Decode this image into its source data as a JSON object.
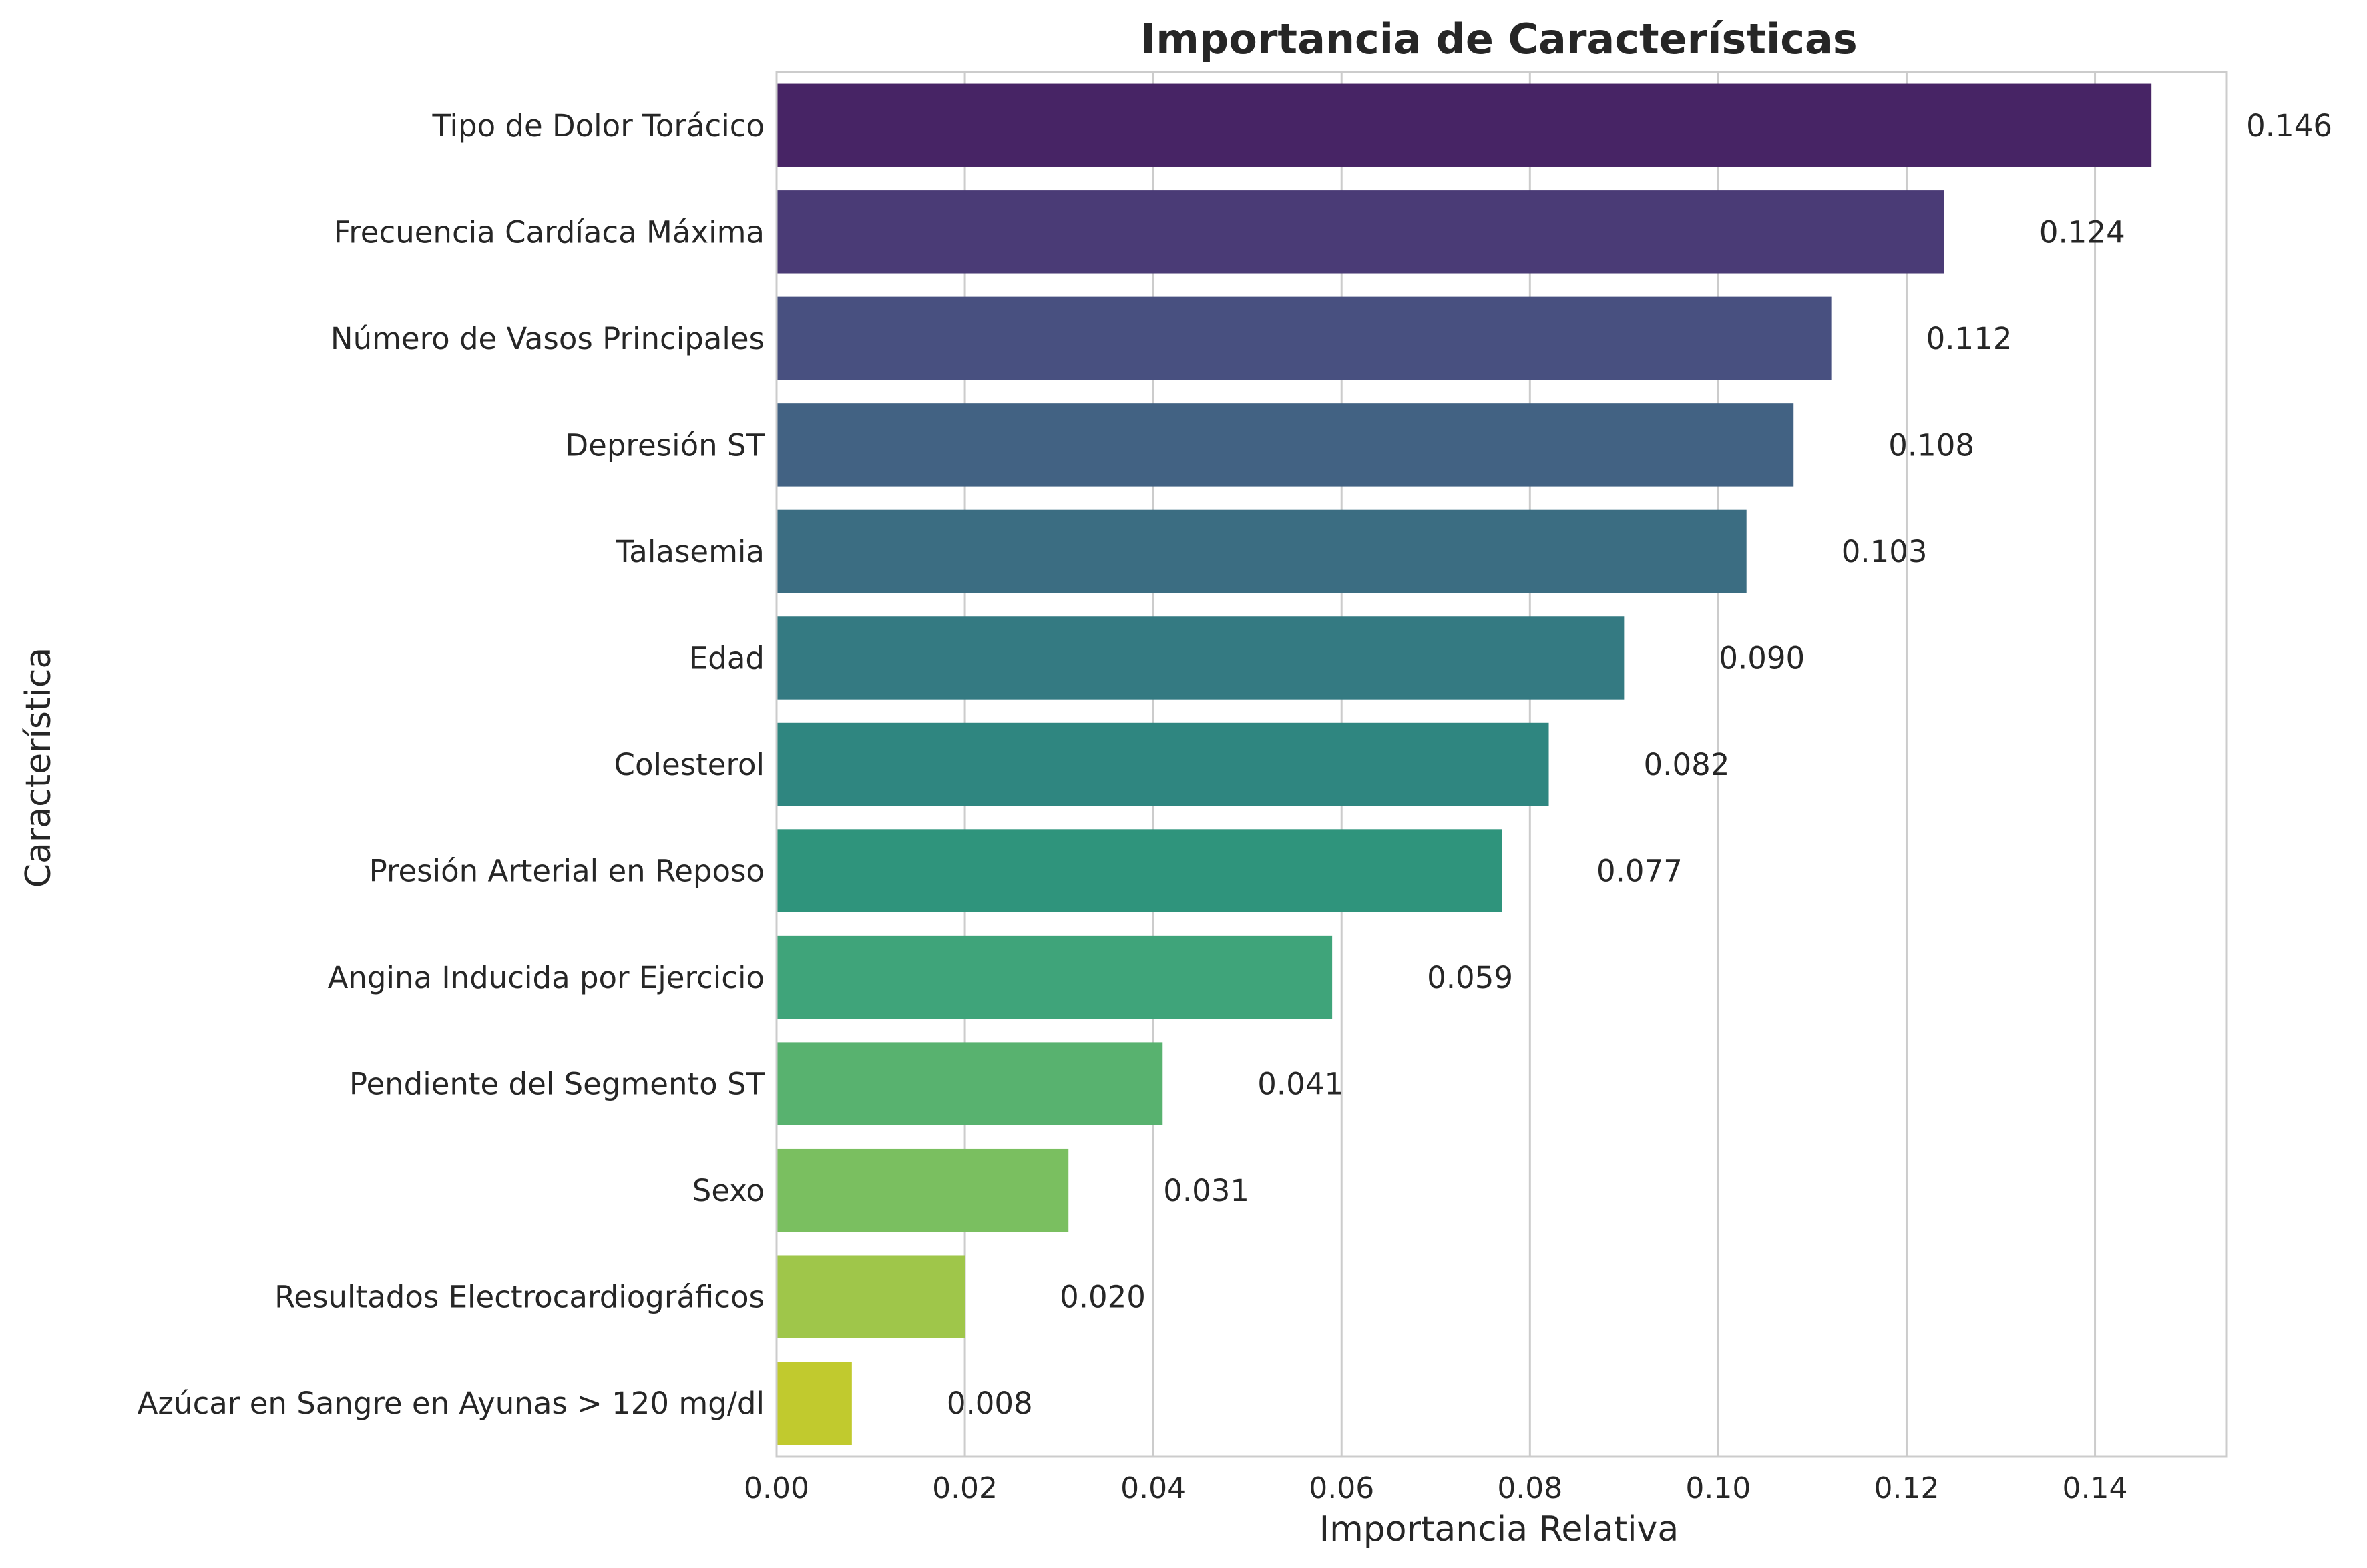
{
  "chart_data": {
    "type": "bar",
    "orientation": "horizontal",
    "title": "Importancia de Características",
    "xlabel": "Importancia Relativa",
    "ylabel": "Característica",
    "xlim": [
      0,
      0.154
    ],
    "xticks": [
      "0.00",
      "0.02",
      "0.04",
      "0.06",
      "0.08",
      "0.10",
      "0.12",
      "0.14"
    ],
    "grid": true,
    "categories": [
      "Tipo de Dolor Torácico",
      "Frecuencia Cardíaca Máxima",
      "Número de Vasos Principales",
      "Depresión ST",
      "Talasemia",
      "Edad",
      "Colesterol",
      "Presión Arterial en Reposo",
      "Angina Inducida por Ejercicio",
      "Pendiente del Segmento ST",
      "Sexo",
      "Resultados Electrocardiográficos",
      "Azúcar en Sangre en Ayunas > 120 mg/dl"
    ],
    "values": [
      0.146,
      0.124,
      0.112,
      0.108,
      0.103,
      0.09,
      0.082,
      0.077,
      0.059,
      0.041,
      0.031,
      0.02,
      0.008
    ],
    "value_labels": [
      "0.146",
      "0.124",
      "0.112",
      "0.108",
      "0.103",
      "0.090",
      "0.082",
      "0.077",
      "0.059",
      "0.041",
      "0.031",
      "0.020",
      "0.008"
    ],
    "colors": [
      "#472465",
      "#4a3b76",
      "#485080",
      "#426283",
      "#3b6d82",
      "#347a82",
      "#2f8680",
      "#2f947c",
      "#3fa47a",
      "#58b26f",
      "#7abf60",
      "#9fc64a",
      "#c1ca2e"
    ]
  }
}
